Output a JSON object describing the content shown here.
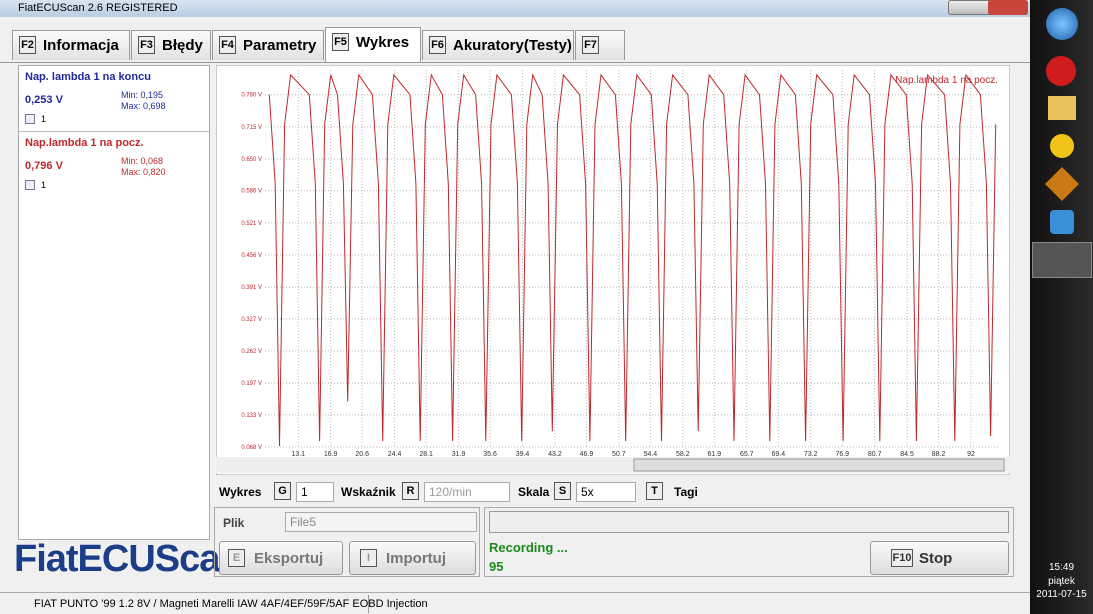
{
  "window_title": "FiatECUScan 2.6 REGISTERED",
  "tabs": [
    {
      "key": "F2",
      "label": "Informacja"
    },
    {
      "key": "F3",
      "label": "Błędy"
    },
    {
      "key": "F4",
      "label": "Parametry"
    },
    {
      "key": "F5",
      "label": "Wykres"
    },
    {
      "key": "F6",
      "label": "Akuratory(Testy)"
    },
    {
      "key": "F7"
    }
  ],
  "params": [
    {
      "name": "Nap. lambda 1 na koncu",
      "value": "0,253 V",
      "min": "Min: 0,195",
      "max": "Max: 0,698",
      "check": "1"
    },
    {
      "name": "Nap.lambda 1 na pocz.",
      "value": "0,796 V",
      "min": "Min: 0,068",
      "max": "Max: 0,820",
      "check": "1"
    }
  ],
  "chart_data": {
    "type": "line",
    "grid": true,
    "x": [
      9.7,
      10.4,
      10.9,
      11.5,
      12.2,
      14.4,
      15.1,
      15.6,
      16.2,
      16.9,
      17.7,
      18.4,
      18.9,
      19.5,
      20.2,
      21.8,
      22.5,
      23.0,
      23.6,
      24.3,
      26.2,
      26.9,
      27.4,
      28.0,
      28.7,
      30.0,
      30.7,
      31.2,
      31.8,
      32.5,
      33.9,
      34.6,
      35.1,
      35.7,
      36.4,
      38.1,
      38.8,
      39.3,
      39.9,
      40.6,
      41.7,
      42.4,
      42.9,
      43.5,
      44.2,
      46.1,
      46.8,
      47.3,
      47.9,
      48.6,
      50.3,
      51.0,
      51.5,
      52.1,
      52.8,
      54.5,
      55.2,
      55.7,
      56.3,
      57.0,
      58.8,
      59.5,
      60.0,
      60.6,
      61.3,
      63.0,
      63.7,
      64.2,
      64.8,
      65.5,
      67.2,
      67.9,
      68.4,
      69.0,
      69.7,
      71.4,
      72.1,
      72.6,
      73.2,
      73.9,
      75.8,
      76.5,
      77.0,
      77.6,
      78.3,
      80.1,
      80.8,
      81.3,
      81.9,
      82.6,
      84.4,
      85.1,
      85.6,
      86.2,
      86.9,
      88.9,
      89.6,
      90.1,
      90.7,
      91.4,
      93.1,
      93.8,
      94.3,
      94.9
    ],
    "series": [
      {
        "name": "Nap.lambda 1 na pocz.",
        "color": "#c0282d",
        "values": [
          0.78,
          0.6,
          0.07,
          0.72,
          0.82,
          0.78,
          0.6,
          0.08,
          0.72,
          0.82,
          0.78,
          0.6,
          0.16,
          0.72,
          0.82,
          0.78,
          0.6,
          0.08,
          0.72,
          0.82,
          0.78,
          0.6,
          0.08,
          0.72,
          0.82,
          0.78,
          0.6,
          0.08,
          0.72,
          0.82,
          0.78,
          0.6,
          0.08,
          0.72,
          0.82,
          0.78,
          0.6,
          0.08,
          0.72,
          0.82,
          0.78,
          0.6,
          0.1,
          0.72,
          0.82,
          0.78,
          0.6,
          0.08,
          0.72,
          0.82,
          0.78,
          0.6,
          0.08,
          0.72,
          0.82,
          0.78,
          0.6,
          0.08,
          0.72,
          0.82,
          0.78,
          0.6,
          0.1,
          0.72,
          0.82,
          0.78,
          0.6,
          0.08,
          0.72,
          0.82,
          0.78,
          0.6,
          0.08,
          0.72,
          0.82,
          0.78,
          0.6,
          0.08,
          0.72,
          0.82,
          0.78,
          0.6,
          0.08,
          0.72,
          0.82,
          0.78,
          0.6,
          0.08,
          0.72,
          0.82,
          0.78,
          0.6,
          0.08,
          0.72,
          0.82,
          0.78,
          0.6,
          0.08,
          0.72,
          0.82,
          0.78,
          0.6,
          0.09,
          0.72
        ]
      }
    ],
    "xlim": [
      9.2,
      95.4
    ],
    "xticks": [
      13.1,
      16.9,
      20.6,
      24.4,
      28.1,
      31.9,
      35.6,
      39.4,
      43.2,
      46.9,
      50.7,
      54.4,
      58.2,
      61.9,
      65.7,
      69.4,
      73.2,
      76.9,
      80.7,
      84.5,
      88.2,
      92.0
    ],
    "ylim": [
      0.068,
      0.83
    ],
    "yticks": [
      {
        "value": 0.068,
        "label": "0.068 V"
      },
      {
        "value": 0.133,
        "label": "0.133 V"
      },
      {
        "value": 0.197,
        "label": "0.197 V"
      },
      {
        "value": 0.262,
        "label": "0.262 V"
      },
      {
        "value": 0.327,
        "label": "0.327 V"
      },
      {
        "value": 0.391,
        "label": "0.391 V"
      },
      {
        "value": 0.456,
        "label": "0.456 V"
      },
      {
        "value": 0.521,
        "label": "0.521 V"
      },
      {
        "value": 0.586,
        "label": "0.586 V"
      },
      {
        "value": 0.65,
        "label": "0.650 V"
      },
      {
        "value": 0.715,
        "label": "0.715 V"
      },
      {
        "value": 0.78,
        "label": "0.780 V"
      }
    ]
  },
  "controls": {
    "wykres": "Wykres",
    "wykres_key": "G",
    "wykres_value": "1",
    "wskaznik": "Wskaźnik",
    "wskaznik_key": "R",
    "wskaznik_value": "120/min",
    "skala": "Skala",
    "skala_key": "S",
    "skala_value": "5x",
    "tagi_key": "T",
    "tagi": "Tagi"
  },
  "file": {
    "label": "Plik",
    "value": "File5",
    "export_key": "E",
    "export": "Eksportuj",
    "import_key": "I",
    "import": "Importuj"
  },
  "status": {
    "recording": "Recording ...",
    "count": "95",
    "stop_key": "F10",
    "stop": "Stop"
  },
  "logo": "FiatECUScan",
  "statusbar": "FIAT PUNTO '99 1.2 8V / Magneti Marelli IAW 4AF/4EF/59F/5AF EOBD Injection",
  "clock": {
    "time": "15:49",
    "day": "piątek",
    "date": "2011-07-15"
  }
}
